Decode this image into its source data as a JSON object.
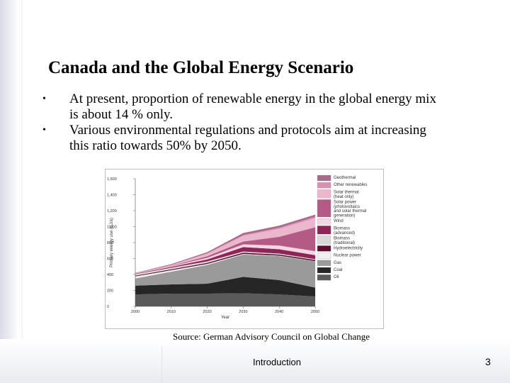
{
  "slide": {
    "title": "Canada and the Global Energy Scenario",
    "bullets": [
      "At present, proportion of renewable energy in the global energy mix is about 14 % only.",
      "Various environmental regulations and protocols aim at increasing this ratio towards 50% by 2050."
    ],
    "source": "Source: German Advisory Council on Global Change",
    "footer": "Introduction",
    "page_number": "3"
  },
  "chart_data": {
    "type": "area",
    "stacked": true,
    "xlabel": "Year",
    "ylabel": "Primary energy use (EJ/a)",
    "x": [
      2000,
      2010,
      2020,
      2030,
      2040,
      2050
    ],
    "ylim": [
      0,
      1600
    ],
    "yticks": [
      0,
      200,
      400,
      600,
      800,
      1000,
      1200,
      1400,
      1600
    ],
    "ytick_labels": [
      "0",
      "200",
      "400",
      "600",
      "800",
      "1,000",
      "1,200",
      "1,400",
      "1,600"
    ],
    "xtick_labels": [
      "2000",
      "2010",
      "2020",
      "2030",
      "2040",
      "2050"
    ],
    "legend_position": "right",
    "series": [
      {
        "name": "Oil",
        "color": "#5a5a5a",
        "values": [
          150,
          160,
          160,
          165,
          150,
          125
        ]
      },
      {
        "name": "Coal",
        "color": "#262626",
        "values": [
          110,
          115,
          125,
          205,
          180,
          110
        ]
      },
      {
        "name": "Gas",
        "color": "#9a9a9a",
        "values": [
          90,
          160,
          235,
          280,
          300,
          330
        ]
      },
      {
        "name": "Nuclear power",
        "color": "#f2f2f2",
        "values": [
          25,
          18,
          12,
          8,
          5,
          2
        ]
      },
      {
        "name": "Hydroelectricity",
        "color": "#5c0f2e",
        "values": [
          10,
          12,
          14,
          15,
          15,
          15
        ]
      },
      {
        "name": "Biomass (traditional)",
        "color": "#d8d8d8",
        "values": [
          20,
          20,
          18,
          15,
          12,
          10
        ]
      },
      {
        "name": "Biomass (advanced)",
        "color": "#8e2457",
        "values": [
          5,
          10,
          25,
          55,
          55,
          50
        ]
      },
      {
        "name": "Wind",
        "color": "#f2d6e2",
        "values": [
          2,
          8,
          20,
          35,
          45,
          50
        ]
      },
      {
        "name": "Solar power (photovoltaics and solar thermal generation)",
        "color": "#b35a85",
        "values": [
          1,
          5,
          20,
          35,
          110,
          300
        ]
      },
      {
        "name": "Solar thermal (heat only)",
        "color": "#eab7cd",
        "values": [
          2,
          10,
          30,
          70,
          100,
          115
        ]
      },
      {
        "name": "Other renewables",
        "color": "#d98fb0",
        "values": [
          0,
          2,
          8,
          12,
          15,
          18
        ]
      },
      {
        "name": "Geothermal",
        "color": "#a86a8a",
        "values": [
          5,
          10,
          13,
          25,
          25,
          25
        ]
      }
    ]
  }
}
